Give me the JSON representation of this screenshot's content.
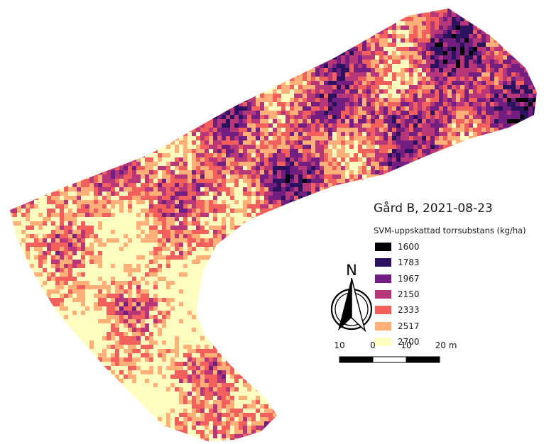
{
  "map": {
    "title": "Gård B, 2021-08-23",
    "legend_title": "SVM-uppskattad torrsubstans (kg/ha)",
    "legend": [
      {
        "label": "1600",
        "color": "#000004"
      },
      {
        "label": "1783",
        "color": "#2c115f"
      },
      {
        "label": "1967",
        "color": "#721f81"
      },
      {
        "label": "2150",
        "color": "#b73779"
      },
      {
        "label": "2333",
        "color": "#f1605d"
      },
      {
        "label": "2517",
        "color": "#feb078"
      },
      {
        "label": "2700",
        "color": "#fcfdbf"
      }
    ],
    "north_label": "N",
    "scale_labels": [
      "10",
      "0",
      "10",
      "20 m"
    ]
  }
}
